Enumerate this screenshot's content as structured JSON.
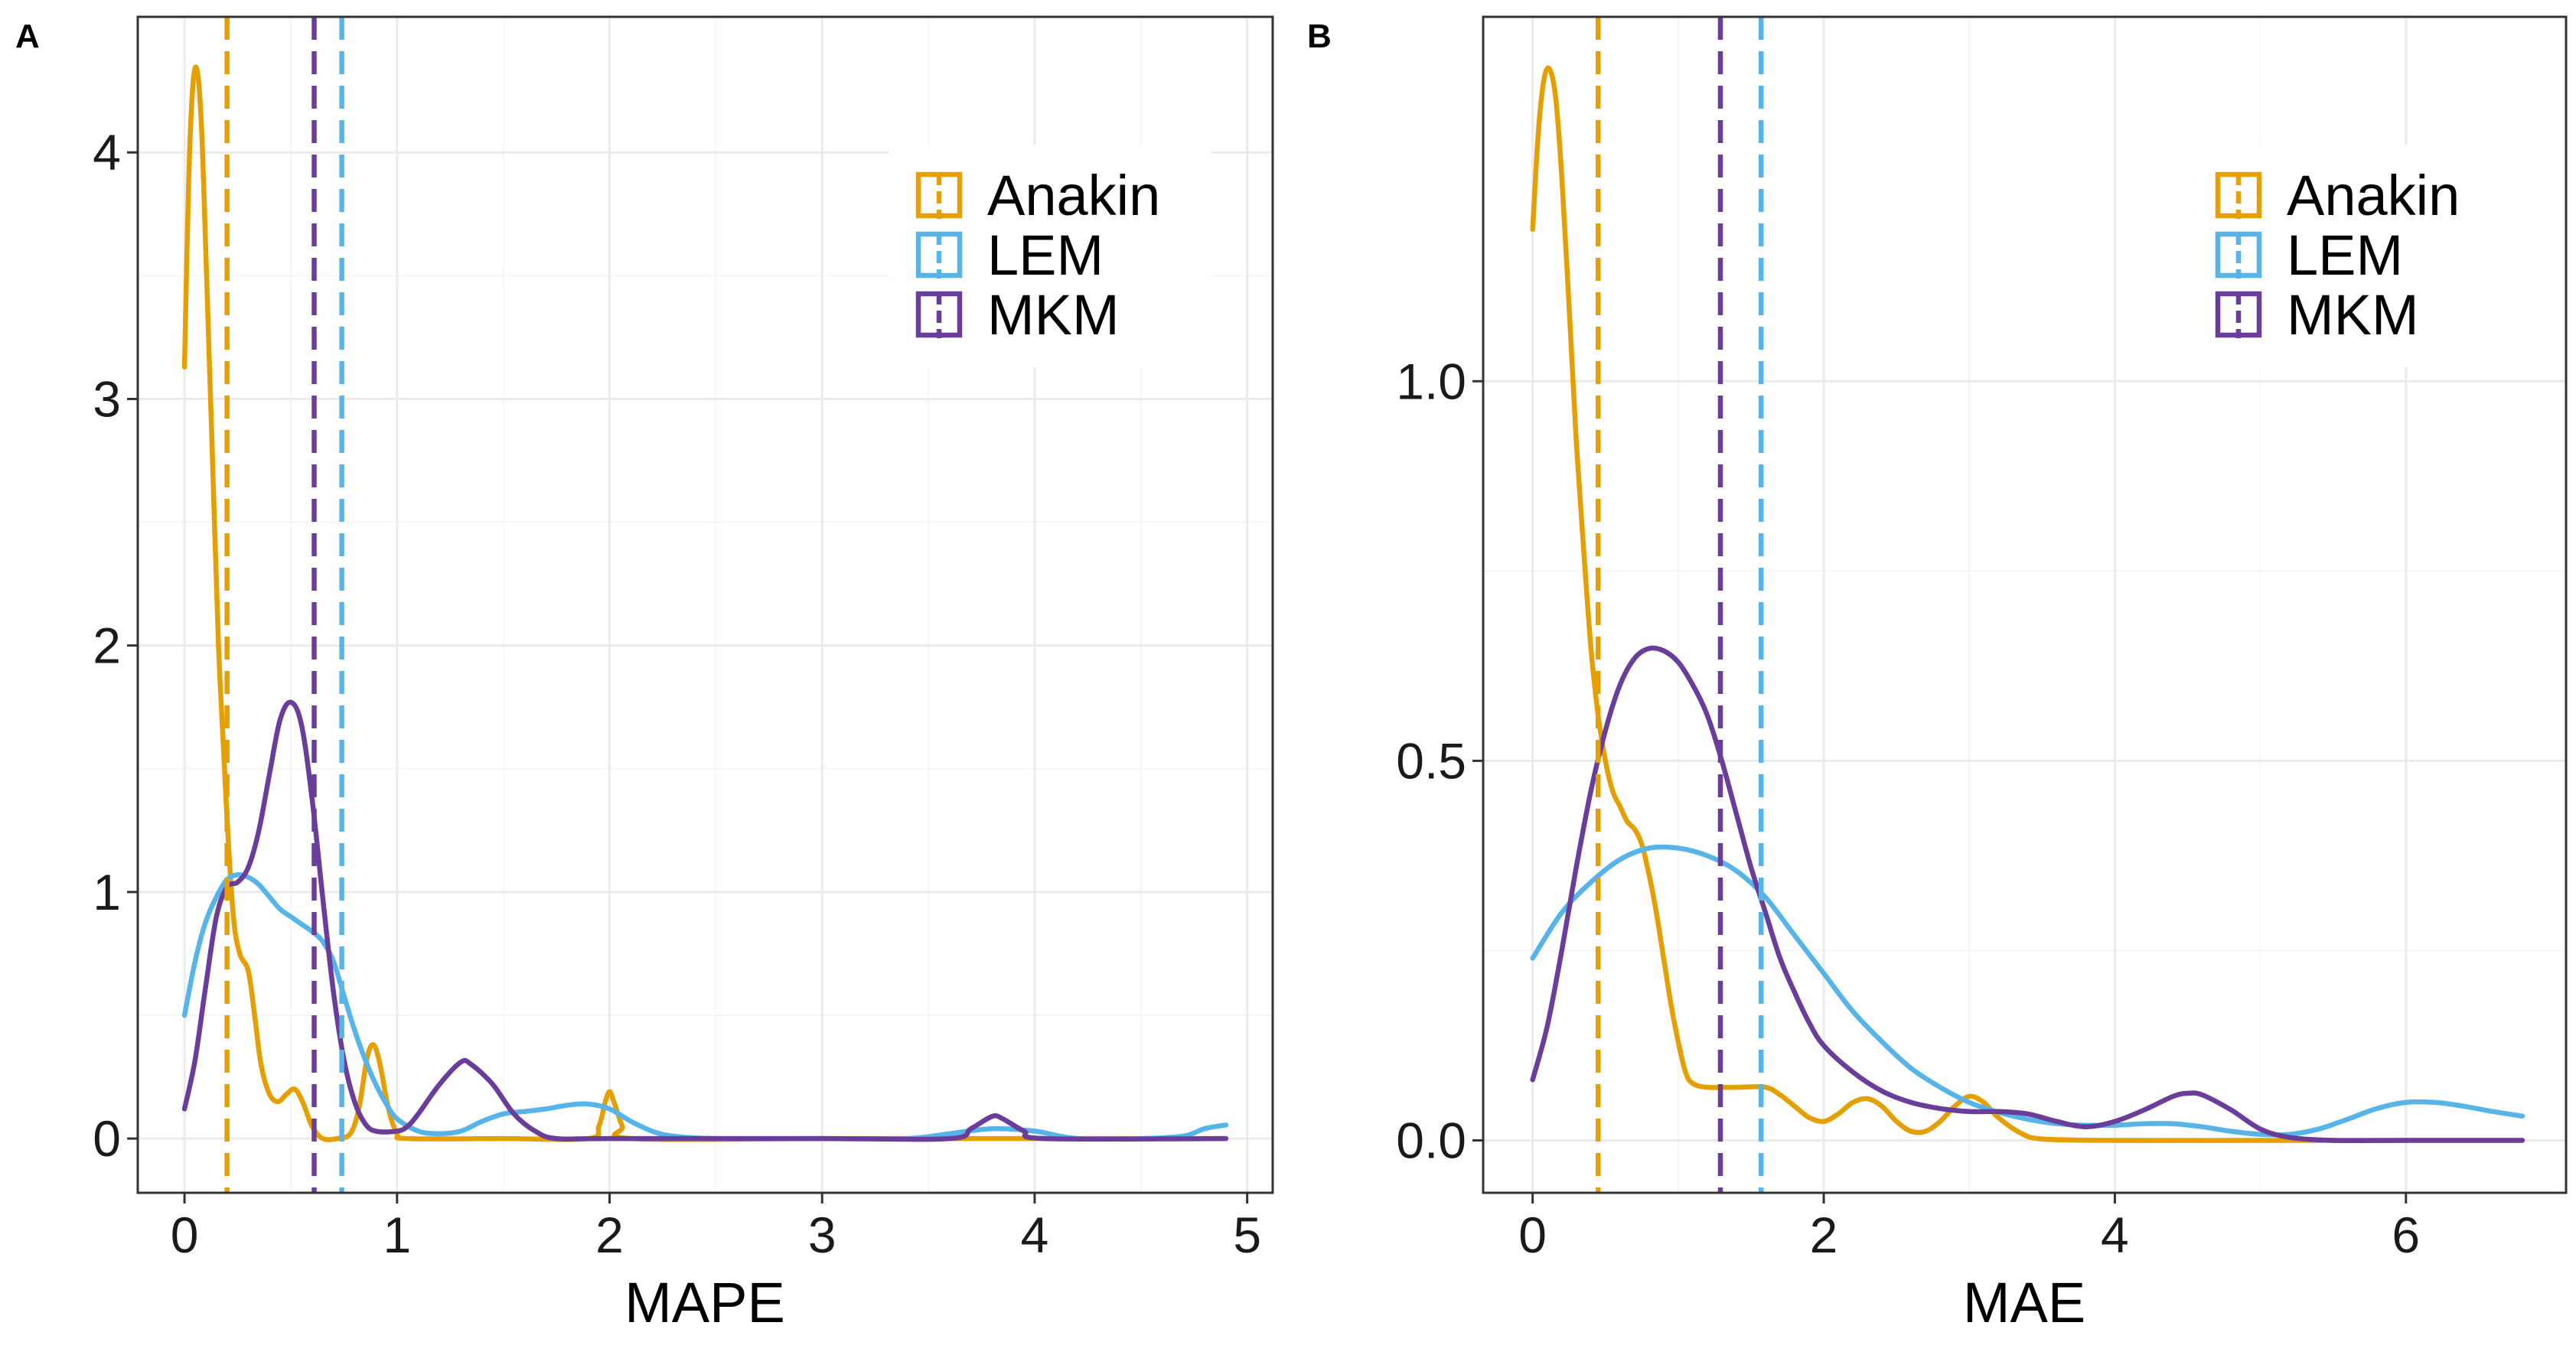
{
  "colors": {
    "Anakin": "#E69F00",
    "LEM": "#56B4E9",
    "MKM": "#6A3D9A",
    "grid_major": "#EBEBEB",
    "grid_minor": "#F5F5F5",
    "frame": "#333333"
  },
  "chart_data": [
    {
      "panel": "A",
      "type": "line",
      "subtype": "density",
      "xlabel": "MAPE",
      "ylabel": "",
      "xlim": [
        -0.22,
        5.12
      ],
      "ylim": [
        -0.22,
        4.55
      ],
      "x_ticks": [
        0,
        1,
        2,
        3,
        4,
        5
      ],
      "x_tick_labels": [
        "0",
        "1",
        "2",
        "3",
        "4",
        "5"
      ],
      "y_ticks": [
        0,
        1,
        2,
        3,
        4
      ],
      "y_tick_labels": [
        "0",
        "1",
        "2",
        "3",
        "4"
      ],
      "legend_position": "top-right",
      "legend": [
        "Anakin",
        "LEM",
        "MKM"
      ],
      "mean_lines": [
        {
          "series": "Anakin",
          "x": 0.2
        },
        {
          "series": "MKM",
          "x": 0.61
        },
        {
          "series": "LEM",
          "x": 0.74
        }
      ],
      "series": [
        {
          "name": "Anakin",
          "points": [
            [
              0.0,
              3.13
            ],
            [
              0.02,
              3.9
            ],
            [
              0.04,
              4.28
            ],
            [
              0.06,
              4.33
            ],
            [
              0.08,
              4.1
            ],
            [
              0.1,
              3.6
            ],
            [
              0.13,
              2.8
            ],
            [
              0.16,
              2.0
            ],
            [
              0.2,
              1.3
            ],
            [
              0.23,
              0.9
            ],
            [
              0.26,
              0.75
            ],
            [
              0.3,
              0.68
            ],
            [
              0.33,
              0.5
            ],
            [
              0.36,
              0.3
            ],
            [
              0.4,
              0.18
            ],
            [
              0.44,
              0.15
            ],
            [
              0.48,
              0.18
            ],
            [
              0.52,
              0.2
            ],
            [
              0.56,
              0.14
            ],
            [
              0.6,
              0.05
            ],
            [
              0.65,
              0.0
            ],
            [
              0.72,
              0.0
            ],
            [
              0.78,
              0.02
            ],
            [
              0.82,
              0.12
            ],
            [
              0.86,
              0.33
            ],
            [
              0.89,
              0.38
            ],
            [
              0.92,
              0.3
            ],
            [
              0.96,
              0.12
            ],
            [
              1.0,
              0.02
            ],
            [
              1.05,
              0.0
            ],
            [
              1.5,
              0.0
            ],
            [
              1.9,
              0.0
            ],
            [
              1.95,
              0.05
            ],
            [
              1.98,
              0.15
            ],
            [
              2.0,
              0.19
            ],
            [
              2.02,
              0.15
            ],
            [
              2.06,
              0.05
            ],
            [
              2.1,
              0.0
            ],
            [
              3.0,
              0.0
            ],
            [
              4.0,
              0.0
            ],
            [
              4.9,
              0.0
            ]
          ]
        },
        {
          "name": "LEM",
          "points": [
            [
              0.0,
              0.5
            ],
            [
              0.05,
              0.72
            ],
            [
              0.1,
              0.88
            ],
            [
              0.15,
              0.98
            ],
            [
              0.2,
              1.05
            ],
            [
              0.25,
              1.07
            ],
            [
              0.3,
              1.06
            ],
            [
              0.35,
              1.03
            ],
            [
              0.4,
              0.98
            ],
            [
              0.45,
              0.93
            ],
            [
              0.5,
              0.9
            ],
            [
              0.55,
              0.87
            ],
            [
              0.6,
              0.84
            ],
            [
              0.65,
              0.8
            ],
            [
              0.7,
              0.72
            ],
            [
              0.75,
              0.58
            ],
            [
              0.8,
              0.44
            ],
            [
              0.85,
              0.32
            ],
            [
              0.9,
              0.22
            ],
            [
              0.95,
              0.14
            ],
            [
              1.0,
              0.08
            ],
            [
              1.1,
              0.03
            ],
            [
              1.2,
              0.02
            ],
            [
              1.3,
              0.03
            ],
            [
              1.4,
              0.07
            ],
            [
              1.5,
              0.1
            ],
            [
              1.6,
              0.11
            ],
            [
              1.7,
              0.12
            ],
            [
              1.8,
              0.135
            ],
            [
              1.9,
              0.14
            ],
            [
              2.0,
              0.12
            ],
            [
              2.1,
              0.07
            ],
            [
              2.2,
              0.03
            ],
            [
              2.3,
              0.01
            ],
            [
              2.5,
              0.0
            ],
            [
              3.0,
              0.0
            ],
            [
              3.4,
              0.0
            ],
            [
              3.6,
              0.02
            ],
            [
              3.8,
              0.04
            ],
            [
              4.0,
              0.03
            ],
            [
              4.2,
              0.0
            ],
            [
              4.5,
              0.0
            ],
            [
              4.7,
              0.01
            ],
            [
              4.8,
              0.04
            ],
            [
              4.9,
              0.055
            ]
          ]
        },
        {
          "name": "MKM",
          "points": [
            [
              0.0,
              0.12
            ],
            [
              0.05,
              0.32
            ],
            [
              0.1,
              0.62
            ],
            [
              0.15,
              0.9
            ],
            [
              0.2,
              1.02
            ],
            [
              0.25,
              1.04
            ],
            [
              0.3,
              1.1
            ],
            [
              0.35,
              1.25
            ],
            [
              0.4,
              1.48
            ],
            [
              0.45,
              1.7
            ],
            [
              0.5,
              1.77
            ],
            [
              0.55,
              1.68
            ],
            [
              0.6,
              1.38
            ],
            [
              0.65,
              0.98
            ],
            [
              0.7,
              0.6
            ],
            [
              0.75,
              0.32
            ],
            [
              0.8,
              0.15
            ],
            [
              0.85,
              0.06
            ],
            [
              0.9,
              0.03
            ],
            [
              1.0,
              0.03
            ],
            [
              1.05,
              0.05
            ],
            [
              1.1,
              0.1
            ],
            [
              1.2,
              0.22
            ],
            [
              1.3,
              0.31
            ],
            [
              1.35,
              0.3
            ],
            [
              1.45,
              0.22
            ],
            [
              1.55,
              0.1
            ],
            [
              1.65,
              0.03
            ],
            [
              1.75,
              0.0
            ],
            [
              2.0,
              0.0
            ],
            [
              3.0,
              0.0
            ],
            [
              3.6,
              0.0
            ],
            [
              3.7,
              0.04
            ],
            [
              3.8,
              0.09
            ],
            [
              3.85,
              0.08
            ],
            [
              3.95,
              0.03
            ],
            [
              4.05,
              0.0
            ],
            [
              4.9,
              0.0
            ]
          ]
        }
      ]
    },
    {
      "panel": "B",
      "type": "line",
      "subtype": "density",
      "xlabel": "MAE",
      "ylabel": "",
      "xlim": [
        -0.34,
        7.1
      ],
      "ylim": [
        -0.069,
        1.48
      ],
      "x_ticks": [
        0,
        2,
        4,
        6
      ],
      "x_tick_labels": [
        "0",
        "2",
        "4",
        "6"
      ],
      "y_ticks": [
        0.0,
        0.5,
        1.0
      ],
      "y_tick_labels": [
        "0.0",
        "0.5",
        "1.0"
      ],
      "legend_position": "top-right",
      "legend": [
        "Anakin",
        "LEM",
        "MKM"
      ],
      "mean_lines": [
        {
          "series": "Anakin",
          "x": 0.45
        },
        {
          "series": "MKM",
          "x": 1.29
        },
        {
          "series": "LEM",
          "x": 1.57
        }
      ],
      "series": [
        {
          "name": "Anakin",
          "points": [
            [
              0.0,
              1.2
            ],
            [
              0.04,
              1.33
            ],
            [
              0.08,
              1.4
            ],
            [
              0.12,
              1.41
            ],
            [
              0.16,
              1.37
            ],
            [
              0.2,
              1.27
            ],
            [
              0.25,
              1.1
            ],
            [
              0.3,
              0.92
            ],
            [
              0.35,
              0.78
            ],
            [
              0.4,
              0.65
            ],
            [
              0.45,
              0.56
            ],
            [
              0.5,
              0.5
            ],
            [
              0.55,
              0.46
            ],
            [
              0.6,
              0.44
            ],
            [
              0.65,
              0.42
            ],
            [
              0.7,
              0.41
            ],
            [
              0.75,
              0.39
            ],
            [
              0.8,
              0.35
            ],
            [
              0.85,
              0.3
            ],
            [
              0.9,
              0.24
            ],
            [
              0.95,
              0.18
            ],
            [
              1.0,
              0.13
            ],
            [
              1.05,
              0.09
            ],
            [
              1.1,
              0.075
            ],
            [
              1.2,
              0.07
            ],
            [
              1.4,
              0.07
            ],
            [
              1.6,
              0.07
            ],
            [
              1.7,
              0.06
            ],
            [
              1.8,
              0.045
            ],
            [
              1.9,
              0.03
            ],
            [
              2.0,
              0.025
            ],
            [
              2.1,
              0.035
            ],
            [
              2.2,
              0.05
            ],
            [
              2.3,
              0.055
            ],
            [
              2.4,
              0.045
            ],
            [
              2.5,
              0.025
            ],
            [
              2.6,
              0.012
            ],
            [
              2.7,
              0.012
            ],
            [
              2.8,
              0.025
            ],
            [
              2.9,
              0.045
            ],
            [
              3.0,
              0.058
            ],
            [
              3.1,
              0.05
            ],
            [
              3.2,
              0.03
            ],
            [
              3.35,
              0.01
            ],
            [
              3.5,
              0.002
            ],
            [
              4.0,
              0.0
            ],
            [
              5.0,
              0.0
            ],
            [
              6.0,
              0.0
            ],
            [
              6.8,
              0.0
            ]
          ]
        },
        {
          "name": "LEM",
          "points": [
            [
              0.0,
              0.24
            ],
            [
              0.2,
              0.3
            ],
            [
              0.4,
              0.34
            ],
            [
              0.6,
              0.37
            ],
            [
              0.8,
              0.385
            ],
            [
              1.0,
              0.385
            ],
            [
              1.2,
              0.375
            ],
            [
              1.4,
              0.355
            ],
            [
              1.6,
              0.32
            ],
            [
              1.8,
              0.27
            ],
            [
              2.0,
              0.22
            ],
            [
              2.2,
              0.17
            ],
            [
              2.4,
              0.13
            ],
            [
              2.6,
              0.095
            ],
            [
              2.8,
              0.07
            ],
            [
              3.0,
              0.05
            ],
            [
              3.2,
              0.037
            ],
            [
              3.4,
              0.028
            ],
            [
              3.6,
              0.022
            ],
            [
              3.8,
              0.02
            ],
            [
              4.0,
              0.02
            ],
            [
              4.2,
              0.022
            ],
            [
              4.4,
              0.022
            ],
            [
              4.6,
              0.018
            ],
            [
              4.8,
              0.012
            ],
            [
              5.0,
              0.008
            ],
            [
              5.2,
              0.008
            ],
            [
              5.4,
              0.015
            ],
            [
              5.6,
              0.028
            ],
            [
              5.8,
              0.042
            ],
            [
              6.0,
              0.05
            ],
            [
              6.2,
              0.05
            ],
            [
              6.4,
              0.045
            ],
            [
              6.6,
              0.038
            ],
            [
              6.8,
              0.032
            ]
          ]
        },
        {
          "name": "MKM",
          "points": [
            [
              0.0,
              0.08
            ],
            [
              0.1,
              0.15
            ],
            [
              0.2,
              0.25
            ],
            [
              0.3,
              0.36
            ],
            [
              0.4,
              0.46
            ],
            [
              0.5,
              0.54
            ],
            [
              0.6,
              0.6
            ],
            [
              0.7,
              0.635
            ],
            [
              0.8,
              0.648
            ],
            [
              0.9,
              0.645
            ],
            [
              1.0,
              0.63
            ],
            [
              1.1,
              0.6
            ],
            [
              1.2,
              0.56
            ],
            [
              1.3,
              0.5
            ],
            [
              1.4,
              0.43
            ],
            [
              1.5,
              0.36
            ],
            [
              1.6,
              0.3
            ],
            [
              1.7,
              0.24
            ],
            [
              1.8,
              0.195
            ],
            [
              1.9,
              0.155
            ],
            [
              2.0,
              0.125
            ],
            [
              2.2,
              0.09
            ],
            [
              2.4,
              0.065
            ],
            [
              2.6,
              0.05
            ],
            [
              2.8,
              0.042
            ],
            [
              3.0,
              0.038
            ],
            [
              3.2,
              0.038
            ],
            [
              3.4,
              0.035
            ],
            [
              3.6,
              0.025
            ],
            [
              3.8,
              0.018
            ],
            [
              4.0,
              0.025
            ],
            [
              4.2,
              0.04
            ],
            [
              4.4,
              0.058
            ],
            [
              4.5,
              0.062
            ],
            [
              4.6,
              0.06
            ],
            [
              4.8,
              0.04
            ],
            [
              5.0,
              0.015
            ],
            [
              5.2,
              0.004
            ],
            [
              5.5,
              0.0
            ],
            [
              6.0,
              0.0
            ],
            [
              6.8,
              0.0
            ]
          ]
        }
      ]
    }
  ]
}
